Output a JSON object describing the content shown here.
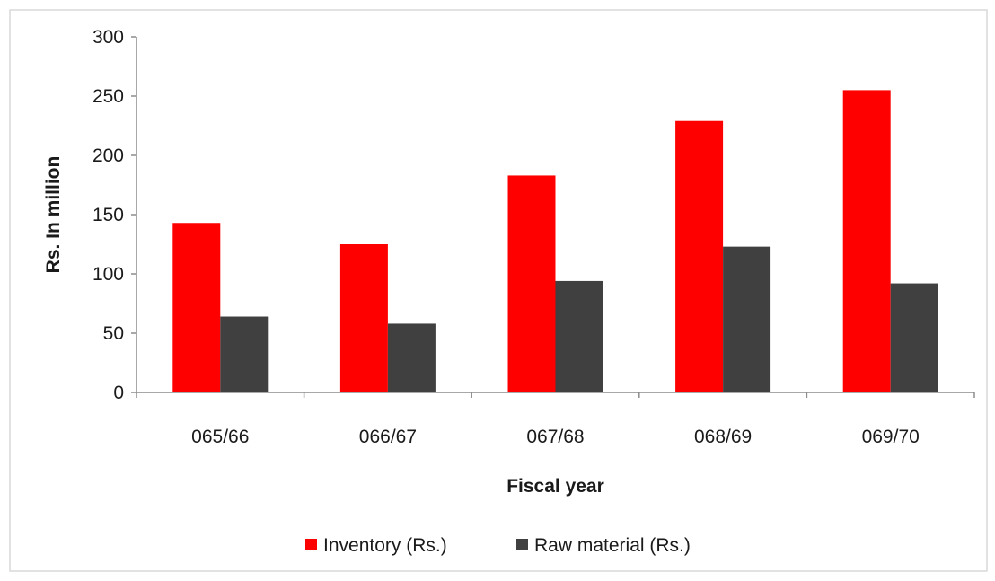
{
  "chart_data": {
    "type": "bar",
    "title": "",
    "xlabel": "Fiscal year",
    "ylabel": "Rs. In million",
    "categories": [
      "065/66",
      "066/67",
      "067/68",
      "068/69",
      "069/70"
    ],
    "series": [
      {
        "name": "Inventory (Rs.)",
        "color": "#ff0000",
        "values": [
          143,
          125,
          183,
          229,
          255
        ]
      },
      {
        "name": "Raw material (Rs.)",
        "color": "#404040",
        "values": [
          64,
          58,
          94,
          123,
          92
        ]
      }
    ],
    "ylim": [
      0,
      300
    ],
    "yticks": [
      "0",
      "50",
      "100",
      "150",
      "200",
      "250",
      "300"
    ],
    "grid": false,
    "legend_position": "bottom"
  }
}
